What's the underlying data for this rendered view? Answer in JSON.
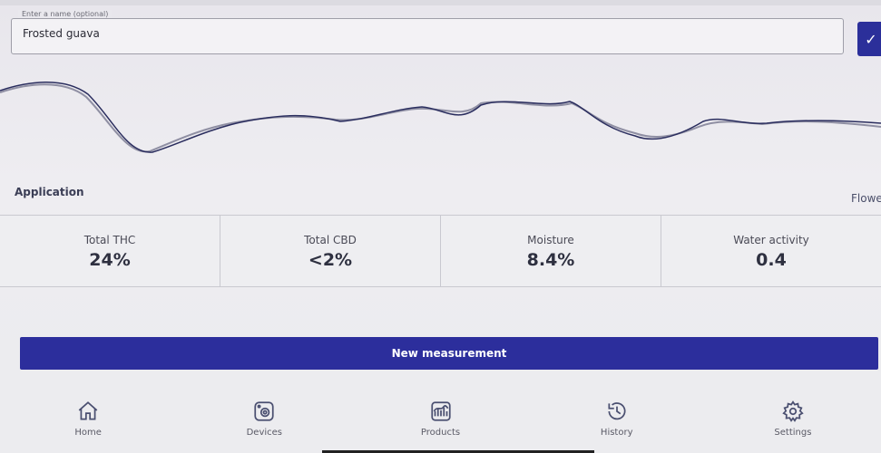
{
  "name_field": {
    "legend": "Enter a name (optional)",
    "value": "Frosted guava"
  },
  "confirm_icon": "check-icon",
  "application": {
    "label": "Application",
    "type": "Flowe"
  },
  "metrics": [
    {
      "label": "Total THC",
      "value": "24%"
    },
    {
      "label": "Total CBD",
      "value": "<2%"
    },
    {
      "label": "Moisture",
      "value": "8.4%"
    },
    {
      "label": "Water activity",
      "value": "0.4"
    }
  ],
  "new_measurement_label": "New measurement",
  "nav": [
    {
      "label": "Home",
      "icon": "home-icon"
    },
    {
      "label": "Devices",
      "icon": "device-icon"
    },
    {
      "label": "Products",
      "icon": "products-icon"
    },
    {
      "label": "History",
      "icon": "history-icon"
    },
    {
      "label": "Settings",
      "icon": "gear-icon"
    }
  ],
  "colors": {
    "accent": "#2c2e9c",
    "spectrum_line": "#2a2d5e",
    "spectrum_ref": "#8f8fa3"
  }
}
